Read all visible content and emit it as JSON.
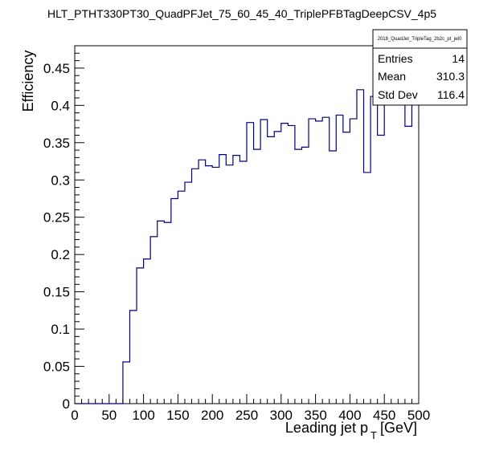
{
  "chart_data": {
    "type": "bar",
    "title": "HLT_PTHT330PT30_QuadPFJet_75_60_45_40_TriplePFBTagDeepCSV_4p5",
    "xlabel_main": "Leading jet p",
    "xlabel_sub": "T",
    "xlabel_unit": "[GeV]",
    "ylabel": "Efficiency",
    "xlim": [
      0,
      500
    ],
    "ylim": [
      0,
      0.48
    ],
    "x_ticks": [
      "0",
      "50",
      "100",
      "150",
      "200",
      "250",
      "300",
      "350",
      "400",
      "450",
      "500"
    ],
    "y_ticks": [
      "0",
      "0.05",
      "0.1",
      "0.15",
      "0.2",
      "0.25",
      "0.3",
      "0.35",
      "0.4",
      "0.45"
    ],
    "bin_width": 10,
    "bin_low_edges": [
      0,
      10,
      20,
      30,
      40,
      50,
      60,
      70,
      80,
      90,
      100,
      110,
      120,
      130,
      140,
      150,
      160,
      170,
      180,
      190,
      200,
      210,
      220,
      230,
      240,
      250,
      260,
      270,
      280,
      290,
      300,
      310,
      320,
      330,
      340,
      350,
      360,
      370,
      380,
      390,
      400,
      410,
      420,
      430,
      440,
      450,
      460,
      470,
      480,
      490
    ],
    "values": [
      0,
      0,
      0,
      0,
      0,
      0,
      0,
      0.056,
      0.125,
      0.182,
      0.194,
      0.224,
      0.245,
      0.243,
      0.275,
      0.285,
      0.297,
      0.315,
      0.327,
      0.319,
      0.317,
      0.334,
      0.32,
      0.333,
      0.325,
      0.377,
      0.341,
      0.381,
      0.358,
      0.365,
      0.376,
      0.373,
      0.341,
      0.344,
      0.382,
      0.379,
      0.384,
      0.339,
      0.387,
      0.364,
      0.382,
      0.421,
      0.31,
      0.412,
      0.36,
      0.41,
      0.41,
      0.41,
      0.372,
      0.412
    ],
    "stats_box": {
      "name": "2018_QuadJet_TripleTag_2b2c_pt_jet0",
      "entries_label": "Entries",
      "entries_value": "14",
      "mean_label": "Mean",
      "mean_value": "310.3",
      "stddev_label": "Std Dev",
      "stddev_value": "116.4"
    },
    "colors": {
      "line": "#000080",
      "frame": "#000000",
      "background": "#ffffff"
    }
  }
}
